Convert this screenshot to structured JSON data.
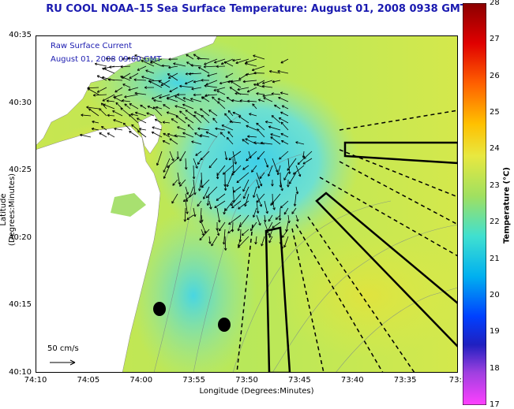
{
  "title": "RU COOL  NOAA–15  Sea Surface Temperature:  August 01, 2008 0938 GMT",
  "legend": {
    "line1": "Raw Surface Current",
    "line2": "August 01, 2008 09:00 GMT"
  },
  "scale_label": "50 cm/s",
  "axes": {
    "xlabel": "Longitude (Degrees:Minutes)",
    "ylabel": "Latitude (Degrees:Minutes)",
    "xticks": [
      "74:10",
      "74:05",
      "74:00",
      "73:55",
      "73:50",
      "73:45",
      "73:40",
      "73:35",
      "73:3"
    ],
    "yticks": [
      "40:35",
      "40:30",
      "40:25",
      "40:20",
      "40:15",
      "40:10"
    ]
  },
  "colorbar": {
    "title": "Temperature (°C)",
    "ticks": [
      "28",
      "27",
      "26",
      "25",
      "24",
      "23",
      "22",
      "21",
      "20",
      "19",
      "18",
      "17"
    ],
    "min": 17,
    "max": 28
  },
  "colors": {
    "title_text": "#1a1ab0",
    "land": "#ffffff",
    "water_warm": "#d8e84a",
    "water_cool": "#4ad8e0"
  }
}
